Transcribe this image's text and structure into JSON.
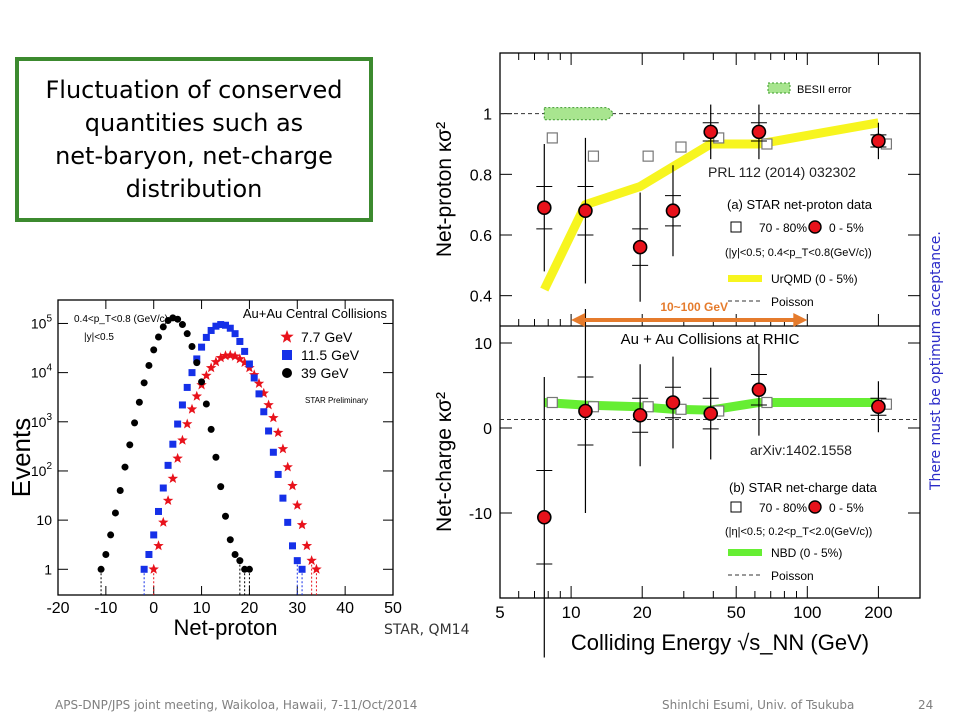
{
  "callout": {
    "text": "Fluctuation of conserved\nquantities such as\nnet-baryon, net-charge\ndistribution"
  },
  "side_note": "There must be optimum acceptance.",
  "star_label": "STAR, QM14",
  "energy_range_label": "10~100 GeV",
  "footer": {
    "left": "APS-DNP/JPS joint meeting, Waikoloa, Hawaii, 7-11/Oct/2014",
    "right": "ShinIchi Esumi, Univ. of Tsukuba",
    "page": "24"
  },
  "colors": {
    "red": "#e8121b",
    "blue": "#1530e8",
    "black": "#000000",
    "urqmd": "#f7f51f",
    "nbd": "#66ee33",
    "arrow": "#e57b2c",
    "callout_border": "#3c8a2f",
    "side_note": "#2b2bc8"
  },
  "chart_data": [
    {
      "type": "scatter",
      "title": "Au+Au Central Collisions",
      "xlabel": "Net-proton",
      "ylabel": "Events",
      "xlim": [
        -20,
        50
      ],
      "ylim": [
        0.3,
        300000
      ],
      "log_y": true,
      "xticks": [
        "-20",
        "-10",
        "0",
        "10",
        "20",
        "30",
        "40",
        "50"
      ],
      "yticks": [
        "1",
        "10",
        "10^2",
        "10^3",
        "10^4",
        "10^5"
      ],
      "cuts": [
        "0.4<p_T<0.8 (GeV/c)",
        "|y|<0.5"
      ],
      "preliminary": "STAR Preliminary",
      "series": [
        {
          "name": "7.7 GeV",
          "marker": "star",
          "color": "#e8121b",
          "x": [
            0,
            1,
            2,
            3,
            4,
            5,
            6,
            7,
            8,
            9,
            10,
            11,
            12,
            13,
            14,
            15,
            16,
            17,
            18,
            19,
            20,
            21,
            22,
            23,
            24,
            25,
            26,
            27,
            28,
            29,
            30,
            31,
            32,
            33,
            34
          ],
          "y": [
            1,
            3,
            9,
            25,
            70,
            180,
            420,
            900,
            1800,
            3300,
            5600,
            8700,
            12500,
            16500,
            20000,
            22000,
            22500,
            21500,
            19000,
            16000,
            12500,
            9000,
            6000,
            3800,
            2200,
            1200,
            600,
            280,
            120,
            50,
            20,
            8,
            3,
            1.5,
            1
          ]
        },
        {
          "name": "11.5 GeV",
          "marker": "square",
          "color": "#1530e8",
          "x": [
            -2,
            -1,
            0,
            1,
            2,
            3,
            4,
            5,
            6,
            7,
            8,
            9,
            10,
            11,
            12,
            13,
            14,
            15,
            16,
            17,
            18,
            19,
            20,
            21,
            22,
            23,
            24,
            25,
            26,
            27,
            28,
            29,
            30,
            31
          ],
          "y": [
            1,
            2,
            5,
            15,
            45,
            130,
            350,
            900,
            2200,
            5000,
            10000,
            19000,
            33000,
            52000,
            72000,
            88000,
            95000,
            92000,
            80000,
            62000,
            43000,
            27000,
            15000,
            7800,
            3700,
            1600,
            650,
            240,
            85,
            28,
            9,
            3,
            1.5,
            1
          ]
        },
        {
          "name": "39 GeV",
          "marker": "circle",
          "color": "#000000",
          "x": [
            -11,
            -10,
            -9,
            -8,
            -7,
            -6,
            -5,
            -4,
            -3,
            -2,
            -1,
            0,
            1,
            2,
            3,
            4,
            5,
            6,
            7,
            8,
            9,
            10,
            11,
            12,
            13,
            14,
            15,
            16,
            17,
            18,
            19,
            20
          ],
          "y": [
            1,
            2,
            5,
            14,
            40,
            120,
            340,
            950,
            2500,
            6200,
            14000,
            29000,
            53000,
            85000,
            115000,
            130000,
            122000,
            95000,
            62000,
            34000,
            16000,
            6500,
            2300,
            700,
            190,
            48,
            12,
            4,
            2,
            1.5,
            1,
            1
          ]
        }
      ]
    },
    {
      "type": "scatter",
      "title": "(a) STAR net-proton data",
      "ylabel": "Net-proton κσ²",
      "log_x": true,
      "ylim": [
        0.3,
        1.2
      ],
      "yticks": [
        "0.4",
        "0.6",
        "0.8",
        "1"
      ],
      "reference": "PRL 112 (2014) 032302",
      "cuts": "(|y|<0.5; 0.4<p_T<0.8(GeV/c))",
      "legend": [
        "70 - 80%",
        "0 - 5%",
        "UrQMD (0 - 5%)",
        "Poisson",
        "BESII error"
      ],
      "series": [
        {
          "name": "0 - 5%",
          "x": [
            7.7,
            11.5,
            19.6,
            27,
            39,
            62.4,
            200
          ],
          "y": [
            0.69,
            0.68,
            0.56,
            0.68,
            0.94,
            0.94,
            0.91
          ],
          "err": [
            0.07,
            0.08,
            0.06,
            0.05,
            0.03,
            0.03,
            0.02
          ]
        },
        {
          "name": "70 - 80%",
          "x": [
            7.7,
            11.5,
            19.6,
            27,
            39,
            62.4,
            200
          ],
          "y": [
            0.92,
            0.86,
            0.86,
            0.89,
            0.92,
            0.9,
            0.9
          ]
        },
        {
          "name": "UrQMD (0 - 5%)",
          "x": [
            7.7,
            11.5,
            19.6,
            39,
            62.4,
            200
          ],
          "y": [
            0.42,
            0.7,
            0.76,
            0.9,
            0.9,
            0.97
          ]
        }
      ]
    },
    {
      "type": "scatter",
      "title": "(b) STAR net-charge data",
      "header": "Au + Au Collisions at RHIC",
      "xlabel": "Colliding Energy √s_NN (GeV)",
      "ylabel": "Net-charge κσ²",
      "log_x": true,
      "xlim": [
        5,
        300
      ],
      "ylim": [
        -20,
        12
      ],
      "xticks": [
        "5",
        "10",
        "20",
        "50",
        "100",
        "200"
      ],
      "yticks": [
        "-10",
        "0",
        "10"
      ],
      "reference": "arXiv:1402.1558",
      "cuts": "(|η|<0.5; 0.2<p_T<2.0(GeV/c))",
      "legend": [
        "70 - 80%",
        "0 - 5%",
        "NBD (0 - 5%)",
        "Poisson"
      ],
      "series": [
        {
          "name": "0 - 5%",
          "x": [
            7.7,
            11.5,
            19.6,
            27,
            39,
            62.4,
            200
          ],
          "y": [
            -10.5,
            2,
            1.5,
            3,
            1.7,
            4.5,
            2.5
          ],
          "err": [
            5.5,
            4,
            2,
            1.8,
            1.8,
            1.8,
            1
          ]
        },
        {
          "name": "70 - 80%",
          "x": [
            7.7,
            11.5,
            19.6,
            27,
            39,
            62.4,
            200
          ],
          "y": [
            3,
            2.5,
            2.5,
            2.2,
            2,
            3,
            2.8
          ]
        },
        {
          "name": "NBD (0 - 5%)",
          "x": [
            7.7,
            11.5,
            19.6,
            27,
            39,
            62.4,
            200
          ],
          "y": [
            3,
            2.7,
            2.5,
            2.2,
            2.1,
            3,
            3
          ]
        }
      ]
    }
  ]
}
